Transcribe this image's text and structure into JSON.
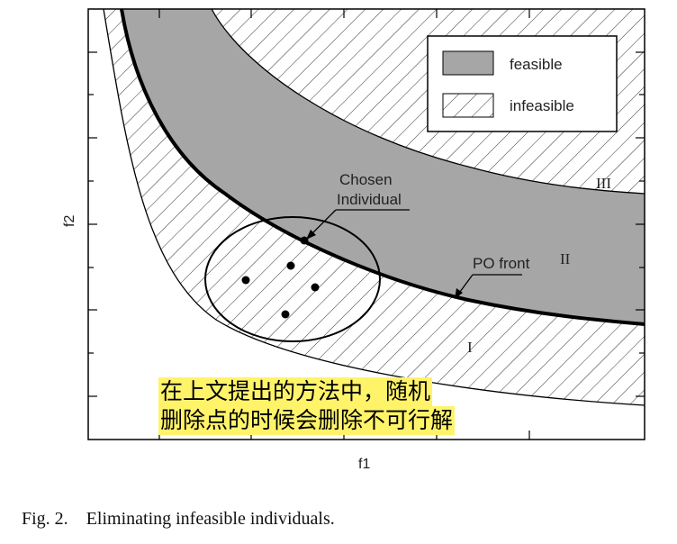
{
  "axes": {
    "xlabel": "f1",
    "ylabel": "f2"
  },
  "legend": {
    "feasible": "feasible",
    "infeasible": "infeasible"
  },
  "regions": {
    "I": "I",
    "II": "II",
    "III": "III"
  },
  "annotations": {
    "chosen_line1": "Chosen",
    "chosen_line2": "Individual",
    "po_front": "PO front"
  },
  "overlay_text": {
    "line1": "在上文提出的方法中，随机",
    "line2": "删除点的时候会删除不可行解"
  },
  "caption": {
    "label": "Fig. 2.",
    "text": "Eliminating infeasible individuals."
  },
  "colors": {
    "feasible_fill": "#a6a6a6",
    "highlight": "#fff36a",
    "line": "#000000"
  }
}
